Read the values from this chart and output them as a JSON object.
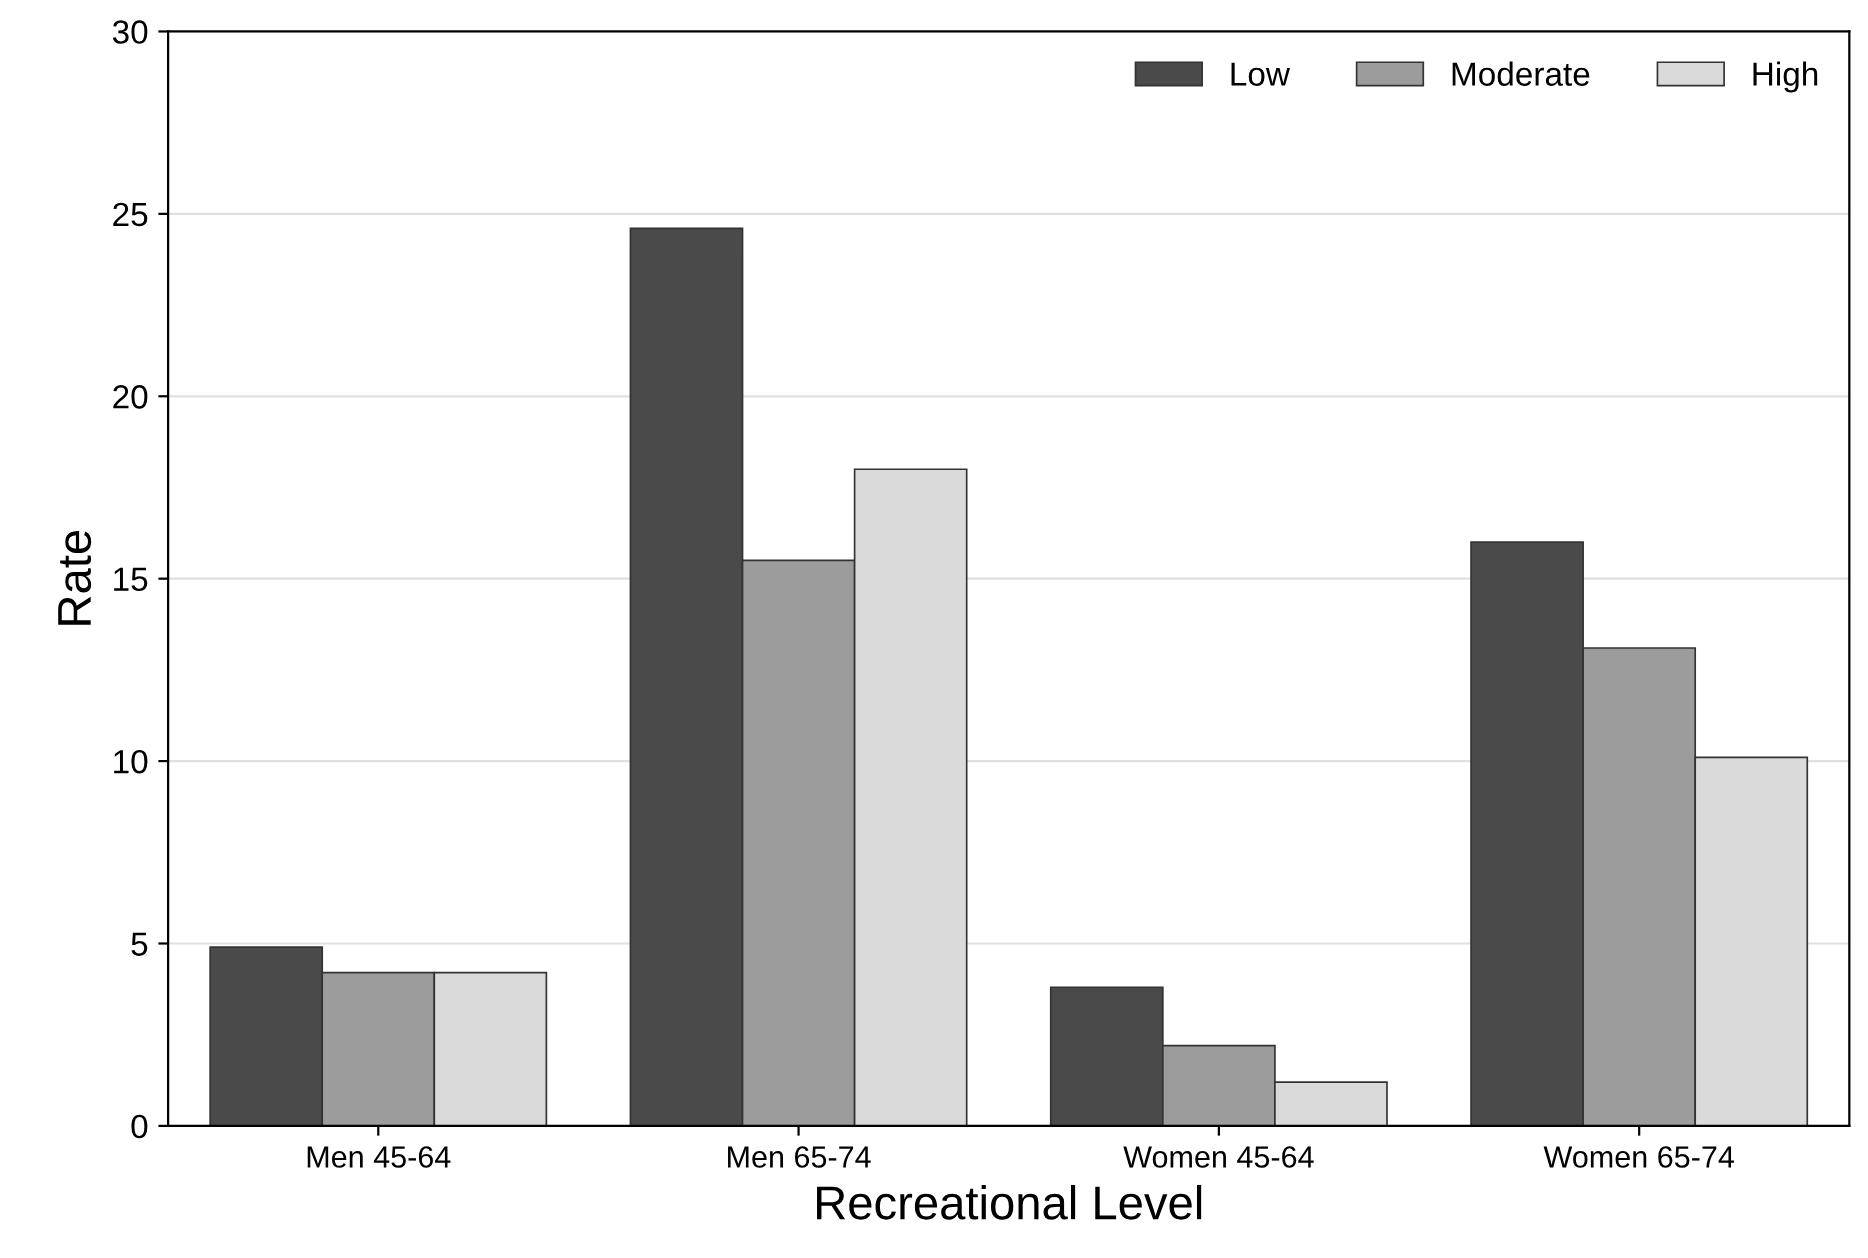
{
  "chart_data": {
    "type": "bar",
    "xlabel": "Recreational Level",
    "ylabel": "Rate",
    "categories": [
      "Men 45-64",
      "Men 65-74",
      "Women 45-64",
      "Women 65-74"
    ],
    "series": [
      {
        "name": "Low",
        "color": "#4a4a4a",
        "values": [
          4.9,
          24.6,
          3.8,
          16.0
        ]
      },
      {
        "name": "Moderate",
        "color": "#9c9c9c",
        "values": [
          4.2,
          15.5,
          2.2,
          13.1
        ]
      },
      {
        "name": "High",
        "color": "#dadada",
        "values": [
          4.2,
          18.0,
          1.2,
          10.1
        ]
      }
    ],
    "ylim": [
      0,
      30
    ],
    "yticks": [
      0,
      5,
      10,
      15,
      20,
      25,
      30
    ],
    "grid": "y",
    "legend": "top right"
  }
}
